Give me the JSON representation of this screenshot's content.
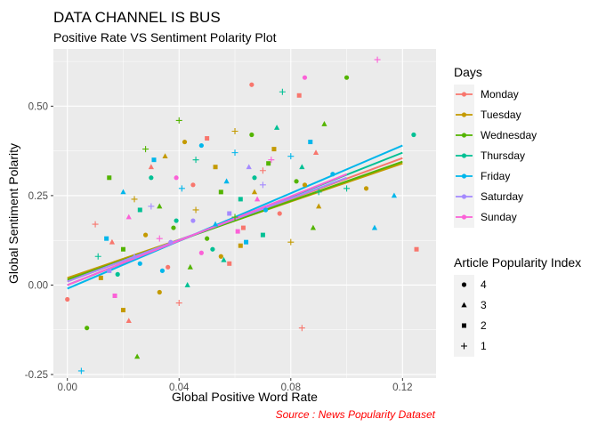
{
  "chart_data": {
    "type": "scatter",
    "title": "DATA CHANNEL IS BUS",
    "subtitle": "Positive Rate VS Sentiment Polarity Plot",
    "xlabel": "Global Positive Word Rate",
    "ylabel": "Global Sentiment Polarity",
    "caption": "Source : News Popularity Dataset",
    "xlim": [
      -0.005,
      0.132
    ],
    "ylim": [
      -0.26,
      0.66
    ],
    "x_ticks": [
      0.0,
      0.04,
      0.08,
      0.12
    ],
    "x_tick_labels": [
      "0.00",
      "0.04",
      "0.08",
      "0.12"
    ],
    "y_ticks": [
      -0.25,
      0.0,
      0.25,
      0.5
    ],
    "y_tick_labels": [
      "-0.25",
      "0.00",
      "0.25",
      "0.50"
    ],
    "grid": true,
    "legend_placement": "right",
    "colour_legend": {
      "title": "Days",
      "entries": [
        {
          "label": "Monday",
          "color": "#F8766D"
        },
        {
          "label": "Tuesday",
          "color": "#C49A00"
        },
        {
          "label": "Wednesday",
          "color": "#53B400"
        },
        {
          "label": "Thursday",
          "color": "#00C094"
        },
        {
          "label": "Friday",
          "color": "#00B6EB"
        },
        {
          "label": "Saturday",
          "color": "#A58AFF"
        },
        {
          "label": "Sunday",
          "color": "#FB61D7"
        }
      ]
    },
    "shape_legend": {
      "title": "Article Popularity Index",
      "entries": [
        {
          "label": "4",
          "shape": "circle"
        },
        {
          "label": "3",
          "shape": "triangle"
        },
        {
          "label": "2",
          "shape": "square"
        },
        {
          "label": "1",
          "shape": "plus"
        }
      ]
    },
    "series": [
      {
        "name": "Monday",
        "fit_line": [
          [
            0.0,
            0.01
          ],
          [
            0.12,
            0.355
          ]
        ],
        "points": [
          [
            0.066,
            0.56,
            4
          ],
          [
            0.083,
            0.53,
            2
          ],
          [
            0.125,
            0.1,
            2
          ],
          [
            0.0,
            -0.04,
            4
          ],
          [
            0.084,
            -0.12,
            1
          ],
          [
            0.022,
            -0.1,
            3
          ],
          [
            0.045,
            0.28,
            4
          ],
          [
            0.058,
            0.06,
            2
          ],
          [
            0.016,
            0.12,
            3
          ],
          [
            0.07,
            0.32,
            1
          ],
          [
            0.036,
            0.05,
            4
          ],
          [
            0.089,
            0.37,
            3
          ],
          [
            0.05,
            0.41,
            2
          ],
          [
            0.01,
            0.17,
            1
          ],
          [
            0.076,
            0.2,
            4
          ],
          [
            0.03,
            0.33,
            3
          ],
          [
            0.063,
            0.16,
            2
          ],
          [
            0.04,
            -0.05,
            1
          ]
        ]
      },
      {
        "name": "Tuesday",
        "fit_line": [
          [
            0.0,
            0.02
          ],
          [
            0.12,
            0.34
          ]
        ],
        "points": [
          [
            0.085,
            0.28,
            4
          ],
          [
            0.107,
            0.27,
            4
          ],
          [
            0.06,
            0.43,
            1
          ],
          [
            0.02,
            -0.07,
            2
          ],
          [
            0.035,
            0.36,
            3
          ],
          [
            0.055,
            0.08,
            4
          ],
          [
            0.074,
            0.38,
            2
          ],
          [
            0.046,
            0.21,
            1
          ],
          [
            0.028,
            0.14,
            4
          ],
          [
            0.067,
            0.26,
            3
          ],
          [
            0.012,
            0.02,
            2
          ],
          [
            0.08,
            0.12,
            1
          ],
          [
            0.042,
            0.4,
            4
          ],
          [
            0.053,
            0.33,
            2
          ],
          [
            0.024,
            0.24,
            1
          ],
          [
            0.09,
            0.22,
            3
          ],
          [
            0.033,
            -0.02,
            4
          ],
          [
            0.062,
            0.11,
            2
          ]
        ]
      },
      {
        "name": "Wednesday",
        "fit_line": [
          [
            0.0,
            0.015
          ],
          [
            0.12,
            0.345
          ]
        ],
        "points": [
          [
            0.1,
            0.58,
            4
          ],
          [
            0.092,
            0.45,
            3
          ],
          [
            0.007,
            -0.12,
            4
          ],
          [
            0.025,
            -0.2,
            3
          ],
          [
            0.04,
            0.46,
            1
          ],
          [
            0.015,
            0.3,
            2
          ],
          [
            0.05,
            0.13,
            4
          ],
          [
            0.072,
            0.34,
            2
          ],
          [
            0.033,
            0.22,
            3
          ],
          [
            0.06,
            0.19,
            1
          ],
          [
            0.082,
            0.29,
            4
          ],
          [
            0.02,
            0.1,
            2
          ],
          [
            0.044,
            0.05,
            3
          ],
          [
            0.066,
            0.42,
            4
          ],
          [
            0.028,
            0.38,
            1
          ],
          [
            0.055,
            0.26,
            2
          ],
          [
            0.038,
            0.16,
            4
          ],
          [
            0.088,
            0.16,
            3
          ]
        ]
      },
      {
        "name": "Thursday",
        "fit_line": [
          [
            0.0,
            0.0
          ],
          [
            0.12,
            0.37
          ]
        ],
        "points": [
          [
            0.124,
            0.42,
            4
          ],
          [
            0.077,
            0.54,
            1
          ],
          [
            0.1,
            0.27,
            1
          ],
          [
            0.056,
            0.07,
            3
          ],
          [
            0.03,
            0.3,
            4
          ],
          [
            0.07,
            0.14,
            2
          ],
          [
            0.046,
            0.35,
            1
          ],
          [
            0.018,
            0.03,
            4
          ],
          [
            0.084,
            0.33,
            3
          ],
          [
            0.062,
            0.24,
            2
          ],
          [
            0.039,
            0.18,
            4
          ],
          [
            0.011,
            0.08,
            1
          ],
          [
            0.075,
            0.44,
            3
          ],
          [
            0.052,
            0.1,
            4
          ],
          [
            0.026,
            0.21,
            2
          ],
          [
            0.09,
            0.26,
            1
          ],
          [
            0.043,
            0.0,
            3
          ],
          [
            0.067,
            0.3,
            4
          ]
        ]
      },
      {
        "name": "Friday",
        "fit_line": [
          [
            0.0,
            -0.01
          ],
          [
            0.12,
            0.39
          ]
        ],
        "points": [
          [
            0.117,
            0.25,
            3
          ],
          [
            0.11,
            0.16,
            3
          ],
          [
            0.005,
            -0.24,
            1
          ],
          [
            0.048,
            0.39,
            4
          ],
          [
            0.02,
            0.26,
            3
          ],
          [
            0.064,
            0.12,
            2
          ],
          [
            0.034,
            0.04,
            4
          ],
          [
            0.08,
            0.36,
            1
          ],
          [
            0.057,
            0.29,
            3
          ],
          [
            0.014,
            0.13,
            2
          ],
          [
            0.071,
            0.21,
            4
          ],
          [
            0.041,
            0.27,
            1
          ],
          [
            0.087,
            0.4,
            2
          ],
          [
            0.026,
            0.06,
            4
          ],
          [
            0.053,
            0.17,
            3
          ],
          [
            0.095,
            0.31,
            4
          ],
          [
            0.031,
            0.35,
            2
          ],
          [
            0.06,
            0.37,
            1
          ]
        ]
      },
      {
        "name": "Saturday",
        "fit_line": [
          [
            0.0,
            0.01
          ],
          [
            0.1,
            0.3
          ]
        ],
        "points": [
          [
            0.037,
            0.12,
            4
          ],
          [
            0.058,
            0.2,
            2
          ],
          [
            0.024,
            0.08,
            3
          ],
          [
            0.07,
            0.28,
            1
          ],
          [
            0.045,
            0.18,
            4
          ],
          [
            0.015,
            0.04,
            2
          ],
          [
            0.065,
            0.33,
            3
          ],
          [
            0.03,
            0.22,
            1
          ]
        ]
      },
      {
        "name": "Sunday",
        "fit_line": [
          [
            0.0,
            0.0
          ],
          [
            0.1,
            0.31
          ]
        ],
        "points": [
          [
            0.111,
            0.63,
            1
          ],
          [
            0.085,
            0.58,
            4
          ],
          [
            0.039,
            0.3,
            4
          ],
          [
            0.061,
            0.15,
            2
          ],
          [
            0.022,
            0.19,
            3
          ],
          [
            0.073,
            0.35,
            1
          ],
          [
            0.048,
            0.09,
            4
          ],
          [
            0.017,
            -0.03,
            2
          ],
          [
            0.068,
            0.24,
            3
          ],
          [
            0.033,
            0.13,
            1
          ]
        ]
      }
    ]
  }
}
